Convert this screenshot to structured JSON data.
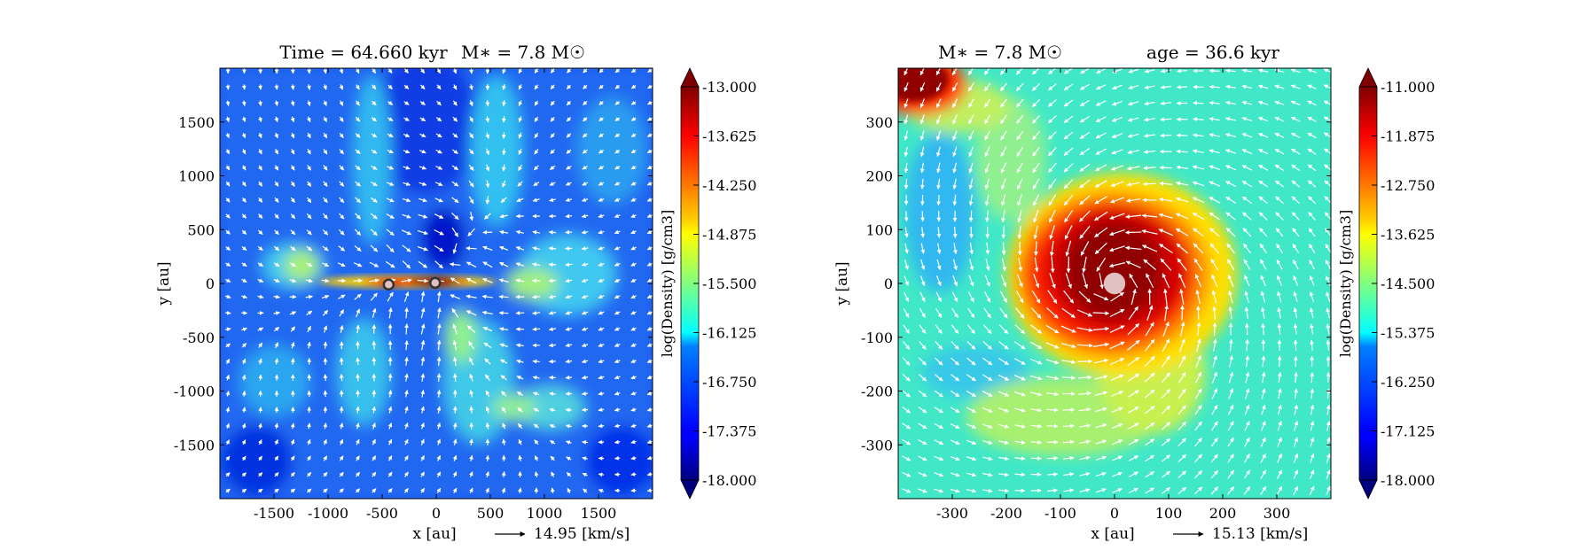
{
  "chart_data": [
    {
      "type": "heatmap",
      "title": "Time = 64.660 kyr    M∗ = 7.8 M☉",
      "title_parts": {
        "time": "Time = 64.660 kyr",
        "mass": "M∗ = 7.8 M☉"
      },
      "xlabel": "x [au]",
      "ylabel": "y [au]",
      "xlim": [
        -2000,
        2000
      ],
      "ylim": [
        -2000,
        2000
      ],
      "xticks": [
        -1500,
        -1000,
        -500,
        0,
        500,
        1000,
        1500
      ],
      "yticks": [
        1500,
        1000,
        500,
        0,
        -500,
        -1000,
        -1500
      ],
      "xtick_labels": [
        "-1500",
        "-1000",
        "-500",
        "0",
        "500",
        "1000",
        "1500"
      ],
      "ytick_labels": [
        "1500",
        "1000",
        "500",
        "0",
        "-500",
        "-1000",
        "-1500"
      ],
      "velocity_key": {
        "value": 14.95,
        "label": "14.95 [km/s]"
      },
      "colorbar": {
        "label": "log(Density) [g/cm3]",
        "min": -18.0,
        "max": -13.0,
        "ticks": [
          "-13.000",
          "-13.625",
          "-14.250",
          "-14.875",
          "-15.500",
          "-16.125",
          "-16.750",
          "-17.375",
          "-18.000"
        ]
      },
      "sink_particles": [
        {
          "x": -440,
          "y": -10
        },
        {
          "x": -10,
          "y": 5
        }
      ],
      "arrow_grid_spacing": 150,
      "colors": {
        "map_low": "#00007f",
        "map_high": "#7f0000",
        "arrows": "#ffffff"
      }
    },
    {
      "type": "heatmap",
      "title": "M∗ = 7.8 M☉          age = 36.6 kyr",
      "title_parts": {
        "mass": "M∗ = 7.8 M☉",
        "age": "age = 36.6 kyr"
      },
      "xlabel": "x [au]",
      "ylabel": "y [au]",
      "xlim": [
        -400,
        400
      ],
      "ylim": [
        -400,
        400
      ],
      "xticks": [
        -300,
        -200,
        -100,
        0,
        100,
        200,
        300
      ],
      "yticks": [
        300,
        200,
        100,
        0,
        -100,
        -200,
        -300
      ],
      "xtick_labels": [
        "-300",
        "-200",
        "-100",
        "0",
        "100",
        "200",
        "300"
      ],
      "ytick_labels": [
        "300",
        "200",
        "100",
        "0",
        "-100",
        "-200",
        "-300"
      ],
      "velocity_key": {
        "value": 15.13,
        "label": "15.13 [km/s]"
      },
      "colorbar": {
        "label": "log(Density) [g/cm3]",
        "min": -18.0,
        "max": -11.0,
        "ticks": [
          "-11.000",
          "-11.875",
          "-12.750",
          "-13.625",
          "-14.500",
          "-15.375",
          "-16.250",
          "-17.125",
          "-18.000"
        ]
      },
      "central_star": {
        "x": 0,
        "y": 0,
        "radius_au": 20
      },
      "arrow_grid_spacing": 30,
      "colors": {
        "star": "#e0c0c0",
        "arrows": "#ffffff"
      }
    }
  ]
}
